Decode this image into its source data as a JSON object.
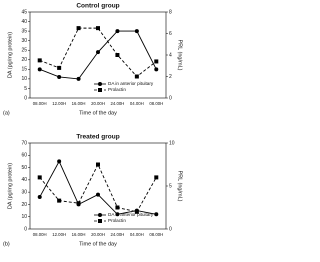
{
  "chart_data": [
    {
      "type": "line",
      "title": "Control group",
      "panel_label": "(a)",
      "xlabel": "Time of the day",
      "ylabel": "DA (pg/mg protein)",
      "y2label": "PRL (ng/mL)",
      "categories": [
        "08.00H",
        "12.00H",
        "16.00H",
        "20.00H",
        "24.00H",
        "04.00H",
        "08.00H"
      ],
      "ylim": [
        0,
        45
      ],
      "yticks": [
        0,
        5,
        10,
        15,
        20,
        25,
        30,
        35,
        40,
        45
      ],
      "y2lim": [
        0,
        8
      ],
      "y2ticks": [
        0,
        2,
        4,
        6,
        8
      ],
      "legend": "lower right",
      "series": [
        {
          "name": "DA in anterior pituitary",
          "color": "#000000",
          "dashed": false,
          "marker": "circle",
          "values": [
            15,
            11,
            10,
            24,
            35,
            35,
            15
          ]
        },
        {
          "name": "Prolactin",
          "color": "#000000",
          "dashed": true,
          "marker": "square",
          "axis": "y2",
          "values": [
            3.5,
            2.8,
            6.5,
            6.5,
            4,
            2,
            3.4
          ]
        }
      ]
    },
    {
      "type": "line",
      "title": "Treated group",
      "panel_label": "(b)",
      "xlabel": "Time of the day",
      "ylabel": "DA (pg/mg protein)",
      "y2label": "PRL (ng/mL)",
      "categories": [
        "08.00H",
        "12.00H",
        "16.00H",
        "20.00H",
        "24.00H",
        "04.00H",
        "08.00H"
      ],
      "ylim": [
        0,
        70
      ],
      "yticks": [
        0,
        10,
        20,
        30,
        40,
        50,
        60,
        70
      ],
      "y2lim": [
        0,
        10
      ],
      "y2ticks": [
        0,
        5,
        10
      ],
      "legend": "lower right",
      "series": [
        {
          "name": "DA in anterior pituitary",
          "color": "#000000",
          "dashed": false,
          "marker": "circle",
          "values": [
            26,
            55,
            20,
            28,
            12,
            15,
            12
          ]
        },
        {
          "name": "Prolactin",
          "color": "#000000",
          "dashed": true,
          "marker": "square",
          "axis": "y2",
          "values": [
            6,
            3.3,
            3,
            7.5,
            2.5,
            2,
            6
          ]
        }
      ]
    }
  ]
}
